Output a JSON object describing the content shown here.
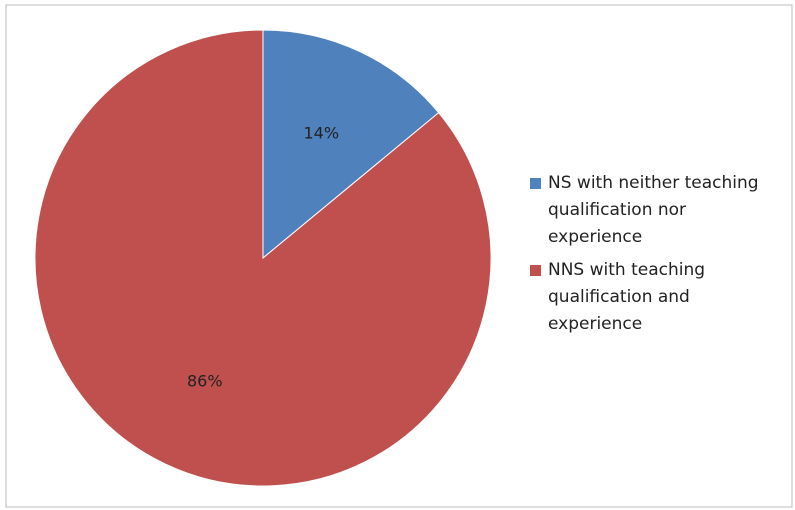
{
  "chart_data": {
    "type": "pie",
    "categories": [
      "NS with neither teaching qualification nor experience",
      "NNS with teaching qualification and experience"
    ],
    "values": [
      14,
      86
    ],
    "value_labels": [
      "14%",
      "86%"
    ],
    "colors": [
      "#4f81bd",
      "#c0504d"
    ],
    "legend": "right"
  }
}
